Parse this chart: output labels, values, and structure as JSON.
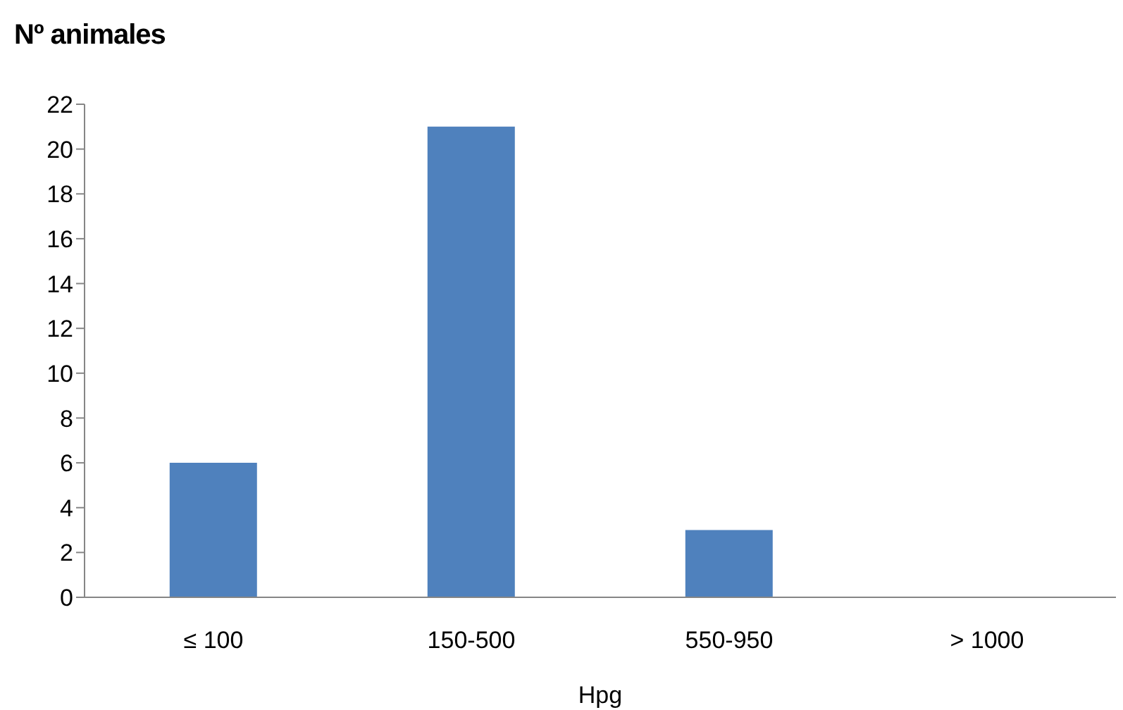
{
  "chart_data": {
    "type": "bar",
    "ylabel": "Nº animales",
    "xlabel": "Hpg",
    "categories": [
      "≤ 100",
      "150-500",
      "550-950",
      "> 1000"
    ],
    "values": [
      6,
      21,
      3,
      0
    ],
    "color": "#4f81bd",
    "ylim": [
      0,
      22
    ],
    "yticks": [
      0,
      2,
      4,
      6,
      8,
      10,
      12,
      14,
      16,
      18,
      20,
      22
    ],
    "grid": false,
    "legend": false
  }
}
